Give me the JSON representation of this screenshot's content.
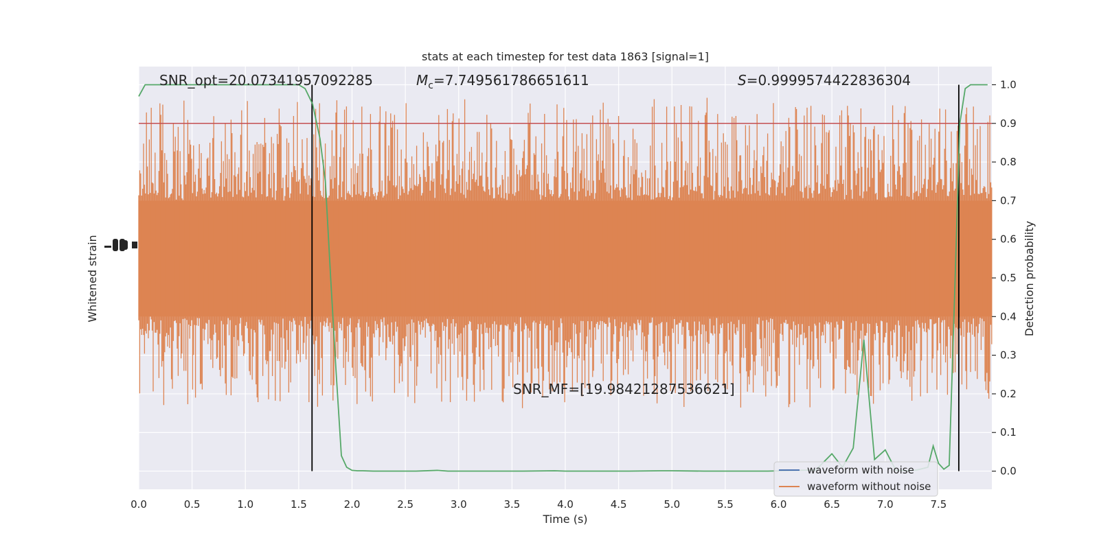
{
  "chart_data": {
    "type": "line",
    "title": "stats at each timestep for test data 1863 [signal=1]",
    "xlabel": "Time (s)",
    "ylabel_left": "Whitened strain",
    "ylabel_right": "Detection probability",
    "xlim": [
      0.0,
      8.0
    ],
    "ylim_right": [
      -0.047,
      1.047
    ],
    "x_ticks": [
      "0.0",
      "0.5",
      "1.0",
      "1.5",
      "2.0",
      "2.5",
      "3.0",
      "3.5",
      "4.0",
      "4.5",
      "5.0",
      "5.5",
      "6.0",
      "6.5",
      "7.0",
      "7.5"
    ],
    "y_ticks_right": [
      "0.0",
      "0.1",
      "0.2",
      "0.3",
      "0.4",
      "0.5",
      "0.6",
      "0.7",
      "0.8",
      "0.9",
      "1.0"
    ],
    "grid": true,
    "annotations": {
      "snr_opt": "SNR_opt=20.07341957092285",
      "mc_symbol": "M",
      "mc_sub": "c",
      "mc_value": "=7.749561786651611",
      "s_symbol": "S",
      "s_value": "=0.9999574422836304",
      "snr_mf": "SNR_MF=[19.98421287536621]"
    },
    "threshold": {
      "value": 0.9,
      "color": "#c44e52"
    },
    "vertical_lines": [
      1.625,
      7.69
    ],
    "legend": {
      "placement": "lower-right",
      "entries": [
        {
          "label": "waveform with noise",
          "color": "#4c72b0"
        },
        {
          "label": "waveform without noise",
          "color": "#dd8452"
        }
      ]
    },
    "series": [
      {
        "name": "waveform with noise",
        "color": "#4c72b0",
        "description": "hidden beneath orange trace"
      },
      {
        "name": "waveform without noise",
        "color": "#dd8452",
        "display": "dense noise band",
        "band_core": [
          0.4,
          0.7
        ],
        "band_extremes": [
          0.16,
          0.97
        ]
      },
      {
        "color": "#55a868",
        "axis": "right",
        "x": [
          0.0,
          0.06,
          0.2,
          0.4,
          0.6,
          0.8,
          1.0,
          1.2,
          1.4,
          1.5,
          1.56,
          1.63,
          1.7,
          1.75,
          1.8,
          1.85,
          1.9,
          1.95,
          2.0,
          2.05,
          2.1,
          2.2,
          2.4,
          2.6,
          2.8,
          2.9,
          3.0,
          3.3,
          3.6,
          3.9,
          4.0,
          4.3,
          4.6,
          4.9,
          5.0,
          5.3,
          5.6,
          5.9,
          6.2,
          6.35,
          6.5,
          6.6,
          6.7,
          6.8,
          6.9,
          7.0,
          7.1,
          7.2,
          7.3,
          7.4,
          7.45,
          7.5,
          7.55,
          7.6,
          7.65,
          7.7,
          7.75,
          7.8,
          7.88,
          7.96
        ],
        "y": [
          0.97,
          1.0,
          1.0,
          1.0,
          1.0,
          1.0,
          1.0,
          1.0,
          1.0,
          1.0,
          0.99,
          0.95,
          0.86,
          0.75,
          0.5,
          0.26,
          0.04,
          0.01,
          0.002,
          0.001,
          0.001,
          0.0,
          0.0,
          0.0,
          0.002,
          0.0,
          0.0,
          0.0,
          0.0,
          0.001,
          0.0,
          0.0,
          0.0,
          0.001,
          0.001,
          0.0,
          0.0,
          0.0,
          0.002,
          0.003,
          0.045,
          0.01,
          0.06,
          0.34,
          0.03,
          0.055,
          0.002,
          0.001,
          0.003,
          0.01,
          0.065,
          0.02,
          0.005,
          0.015,
          0.45,
          0.9,
          0.99,
          1.0,
          1.0,
          1.0
        ]
      }
    ]
  }
}
